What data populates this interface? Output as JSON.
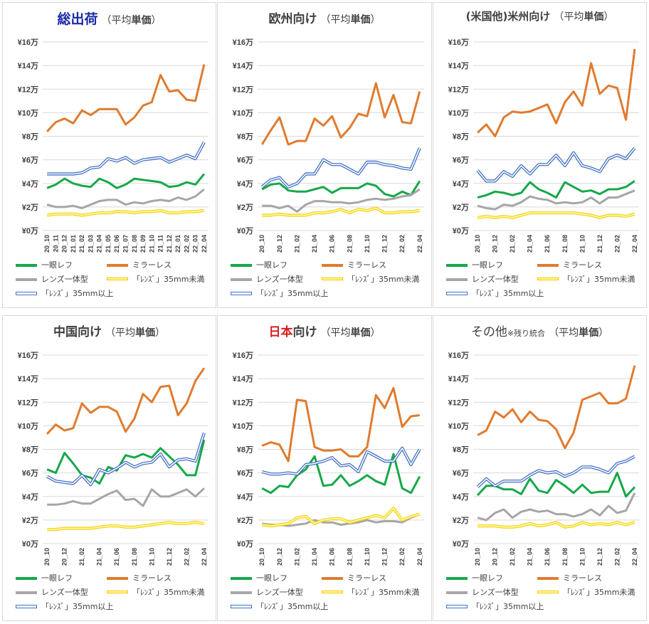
{
  "colors": {
    "一眼レフ": "#16a84a",
    "ミラーレス": "#e07b2f",
    "レンズ一体型": "#a6a6a6",
    "lens_small": "#f6d027",
    "lens_large": "#4472c4",
    "title_blue": "#1b2ca8",
    "title_red": "#d91e1e"
  },
  "legend": [
    "一眼レフ",
    "ミラーレス",
    "レンズ一体型",
    "「ﾚﾝｽﾞ」35mm未満",
    "「ﾚﾝｽﾞ」35mm以上"
  ],
  "panels": [
    {
      "title_main": "総出荷",
      "title_sub": "（平均",
      "title_bold": "単価",
      "title_close": "）",
      "title_color": "#1b2ca8"
    },
    {
      "title_main": "欧州向け",
      "title_sub": "（平均",
      "title_bold": "単価",
      "title_close": "）",
      "title_color": "#404040"
    },
    {
      "title_main": "(米国他)米州向け",
      "title_sub": "（平均",
      "title_bold": "単価",
      "title_close": "）",
      "title_color": "#404040"
    },
    {
      "title_main": "中国向け",
      "title_sub": "（平均",
      "title_bold": "単価",
      "title_close": "）",
      "title_color": "#404040"
    },
    {
      "title_main": "日本",
      "title_suffix": "向け",
      "title_sub": "（平均",
      "title_bold": "単価",
      "title_close": "）",
      "title_color": "#d91e1e"
    },
    {
      "title_main": "その他",
      "title_note": "※残り統合",
      "title_sub": "（平均",
      "title_bold": "単価",
      "title_close": "）",
      "title_color": "#404040"
    }
  ],
  "chart_data": [
    {
      "type": "line",
      "title": "総出荷（平均単価）",
      "x": [
        "20_10",
        "20_11",
        "20_12",
        "21_01",
        "21_02",
        "21_03",
        "21_04",
        "21_05",
        "21_06",
        "21_07",
        "21_08",
        "21_09",
        "21_10",
        "21_11",
        "21_12",
        "22_01",
        "22_02",
        "22_03",
        "22_04"
      ],
      "x_tick_labels": [
        "20_10",
        "20_11",
        "20_12",
        "21_01",
        "21_02",
        "21_03",
        "21_04",
        "21_05",
        "21_06",
        "21_07",
        "21_08",
        "21_09",
        "21_10",
        "21_11",
        "21_12",
        "22_01",
        "22_02",
        "22_03",
        "22_04"
      ],
      "y_tick_labels": [
        "¥0万",
        "¥2万",
        "¥4万",
        "¥6万",
        "¥8万",
        "¥10万",
        "¥12万",
        "¥14万",
        "¥16万"
      ],
      "ylim": [
        0,
        16
      ],
      "series": [
        {
          "name": "一眼レフ",
          "values": [
            3.6,
            3.9,
            4.4,
            4.0,
            3.8,
            3.7,
            4.4,
            4.1,
            3.6,
            3.9,
            4.4,
            4.3,
            4.2,
            4.1,
            3.7,
            3.8,
            4.1,
            3.9,
            4.8
          ]
        },
        {
          "name": "ミラーレス",
          "values": [
            8.4,
            9.2,
            9.5,
            9.1,
            10.2,
            9.8,
            10.3,
            10.3,
            10.3,
            9.0,
            9.6,
            10.6,
            10.9,
            13.2,
            11.8,
            11.9,
            11.1,
            11.0,
            14.1
          ]
        },
        {
          "name": "レンズ一体型",
          "values": [
            2.2,
            2.0,
            2.0,
            2.1,
            1.9,
            2.2,
            2.5,
            2.6,
            2.6,
            2.2,
            2.4,
            2.3,
            2.5,
            2.6,
            2.5,
            2.8,
            2.6,
            2.9,
            3.5
          ]
        },
        {
          "name": "「ﾚﾝｽﾞ」35mm未満",
          "values": [
            1.3,
            1.4,
            1.4,
            1.4,
            1.3,
            1.4,
            1.5,
            1.5,
            1.6,
            1.6,
            1.5,
            1.6,
            1.6,
            1.7,
            1.5,
            1.5,
            1.6,
            1.6,
            1.7
          ]
        },
        {
          "name": "「ﾚﾝｽﾞ」35mm以上",
          "values": [
            4.8,
            4.8,
            4.8,
            4.8,
            4.9,
            5.3,
            5.4,
            6.1,
            5.9,
            6.2,
            5.7,
            6.0,
            6.1,
            6.2,
            5.8,
            6.1,
            6.4,
            6.1,
            7.5
          ]
        }
      ]
    },
    {
      "type": "line",
      "title": "欧州向け（平均単価）",
      "x": [
        "20_10",
        "20_11",
        "20_12",
        "21_01",
        "21_02",
        "21_03",
        "21_04",
        "21_05",
        "21_06",
        "21_07",
        "21_08",
        "21_09",
        "21_10",
        "21_11",
        "21_12",
        "22_01",
        "22_02",
        "22_03",
        "22_04"
      ],
      "x_tick_labels": [
        "20_10",
        "20_12",
        "21_02",
        "21_04",
        "21_06",
        "21_08",
        "21_10",
        "21_12",
        "22_02",
        "22_04"
      ],
      "y_tick_labels": [
        "¥0万",
        "¥2万",
        "¥4万",
        "¥6万",
        "¥8万",
        "¥10万",
        "¥12万",
        "¥14万",
        "¥16万"
      ],
      "ylim": [
        0,
        16
      ],
      "series": [
        {
          "name": "一眼レフ",
          "values": [
            3.5,
            3.9,
            4.0,
            3.4,
            3.3,
            3.3,
            3.5,
            3.7,
            3.2,
            3.6,
            3.6,
            3.6,
            4.0,
            3.8,
            3.1,
            2.9,
            3.3,
            3.0,
            4.2
          ]
        },
        {
          "name": "ミラーレス",
          "values": [
            7.3,
            8.5,
            9.6,
            7.3,
            7.6,
            7.6,
            9.5,
            8.9,
            9.7,
            7.9,
            8.7,
            9.9,
            9.7,
            12.5,
            9.6,
            11.5,
            9.2,
            9.1,
            11.8
          ]
        },
        {
          "name": "レンズ一体型",
          "values": [
            2.1,
            2.1,
            1.9,
            2.1,
            1.6,
            2.2,
            2.5,
            2.5,
            2.4,
            2.4,
            2.3,
            2.4,
            2.6,
            2.7,
            2.6,
            2.7,
            2.9,
            3.0,
            3.5
          ]
        },
        {
          "name": "「ﾚﾝｽﾞ」35mm未満",
          "values": [
            1.3,
            1.3,
            1.4,
            1.3,
            1.3,
            1.3,
            1.5,
            1.5,
            1.6,
            1.8,
            1.5,
            1.8,
            1.7,
            1.9,
            1.5,
            1.5,
            1.6,
            1.6,
            1.7
          ]
        },
        {
          "name": "「ﾚﾝｽﾞ」35mm以上",
          "values": [
            3.7,
            4.3,
            4.5,
            3.7,
            4.0,
            4.8,
            4.8,
            6.0,
            5.6,
            5.6,
            5.2,
            4.8,
            5.8,
            5.8,
            5.6,
            5.5,
            5.3,
            5.2,
            7.0
          ]
        }
      ]
    },
    {
      "type": "line",
      "title": "(米国他)米州向け（平均単価）",
      "x": [
        "20_10",
        "20_11",
        "20_12",
        "21_01",
        "21_02",
        "21_03",
        "21_04",
        "21_05",
        "21_06",
        "21_07",
        "21_08",
        "21_09",
        "21_10",
        "21_11",
        "21_12",
        "22_01",
        "22_02",
        "22_03",
        "22_04"
      ],
      "x_tick_labels": [
        "20_10",
        "20_12",
        "21_02",
        "21_04",
        "21_06",
        "21_08",
        "21_10",
        "21_12",
        "22_02",
        "22_04"
      ],
      "y_tick_labels": [
        "¥0万",
        "¥2万",
        "¥4万",
        "¥6万",
        "¥8万",
        "¥10万",
        "¥12万",
        "¥14万",
        "¥16万"
      ],
      "ylim": [
        0,
        16
      ],
      "series": [
        {
          "name": "一眼レフ",
          "values": [
            2.8,
            3.0,
            3.3,
            3.2,
            3.0,
            3.2,
            4.1,
            3.5,
            3.2,
            2.8,
            4.1,
            3.7,
            3.3,
            3.4,
            3.1,
            3.5,
            3.5,
            3.7,
            4.2
          ]
        },
        {
          "name": "ミラーレス",
          "values": [
            8.3,
            9.0,
            8.0,
            9.6,
            10.1,
            10.0,
            10.1,
            10.4,
            10.7,
            9.1,
            10.9,
            11.8,
            10.6,
            14.2,
            11.6,
            12.3,
            12.1,
            9.4,
            15.4
          ]
        },
        {
          "name": "レンズ一体型",
          "values": [
            2.1,
            1.9,
            1.8,
            2.2,
            2.1,
            2.4,
            2.9,
            2.7,
            2.6,
            2.3,
            2.4,
            2.3,
            2.4,
            2.8,
            2.3,
            2.8,
            2.8,
            3.1,
            3.4
          ]
        },
        {
          "name": "「ﾚﾝｽﾞ」35mm未満",
          "values": [
            1.1,
            1.2,
            1.1,
            1.2,
            1.1,
            1.3,
            1.5,
            1.5,
            1.5,
            1.5,
            1.5,
            1.5,
            1.4,
            1.3,
            1.1,
            1.3,
            1.3,
            1.2,
            1.4
          ]
        },
        {
          "name": "「ﾚﾝｽﾞ」35mm以上",
          "values": [
            5.1,
            4.2,
            4.2,
            5.0,
            4.6,
            5.5,
            4.8,
            5.6,
            5.6,
            6.4,
            5.5,
            6.6,
            5.5,
            5.3,
            5.0,
            6.1,
            6.4,
            6.1,
            7.0
          ]
        }
      ]
    },
    {
      "type": "line",
      "title": "中国向け（平均単価）",
      "x": [
        "20_10",
        "20_11",
        "20_12",
        "21_01",
        "21_02",
        "21_03",
        "21_04",
        "21_05",
        "21_06",
        "21_07",
        "21_08",
        "21_09",
        "21_10",
        "21_11",
        "21_12",
        "22_01",
        "22_02",
        "22_03",
        "22_04"
      ],
      "x_tick_labels": [
        "20_10",
        "20_12",
        "21_02",
        "21_04",
        "21_06",
        "21_08",
        "21_10",
        "21_12",
        "22_02",
        "22_04"
      ],
      "y_tick_labels": [
        "¥0万",
        "¥2万",
        "¥4万",
        "¥6万",
        "¥8万",
        "¥10万",
        "¥12万",
        "¥14万",
        "¥16万"
      ],
      "ylim": [
        0,
        16
      ],
      "series": [
        {
          "name": "一眼レフ",
          "values": [
            6.3,
            6.0,
            7.7,
            6.8,
            5.8,
            5.6,
            5.1,
            6.5,
            6.2,
            7.5,
            7.3,
            7.6,
            7.3,
            8.1,
            7.4,
            6.7,
            5.8,
            5.8,
            8.8
          ]
        },
        {
          "name": "ミラーレス",
          "values": [
            9.3,
            10.1,
            9.6,
            9.8,
            11.9,
            11.1,
            11.6,
            11.6,
            11.2,
            9.5,
            10.6,
            12.7,
            12.0,
            13.3,
            13.4,
            10.9,
            11.9,
            13.8,
            14.9
          ]
        },
        {
          "name": "レンズ一体型",
          "values": [
            3.3,
            3.3,
            3.4,
            3.6,
            3.4,
            3.4,
            3.8,
            4.2,
            4.5,
            3.7,
            3.8,
            3.2,
            4.6,
            4.0,
            4.0,
            4.3,
            4.6,
            4.0,
            4.7
          ]
        },
        {
          "name": "「ﾚﾝｽﾞ」35mm未満",
          "values": [
            1.2,
            1.2,
            1.3,
            1.3,
            1.3,
            1.3,
            1.4,
            1.5,
            1.5,
            1.4,
            1.4,
            1.5,
            1.6,
            1.7,
            1.8,
            1.7,
            1.7,
            1.8,
            1.7
          ]
        },
        {
          "name": "「ﾚﾝｽﾞ」35mm以上",
          "values": [
            5.7,
            5.3,
            5.2,
            5.1,
            5.8,
            5.0,
            6.3,
            6.0,
            6.4,
            6.9,
            6.5,
            6.8,
            6.9,
            7.6,
            6.5,
            7.1,
            7.2,
            7.0,
            9.4
          ]
        }
      ]
    },
    {
      "type": "line",
      "title": "日本向け（平均単価）",
      "x": [
        "20_10",
        "20_11",
        "20_12",
        "21_01",
        "21_02",
        "21_03",
        "21_04",
        "21_05",
        "21_06",
        "21_07",
        "21_08",
        "21_09",
        "21_10",
        "21_11",
        "21_12",
        "22_01",
        "22_02",
        "22_03",
        "22_04"
      ],
      "x_tick_labels": [
        "20_10",
        "20_12",
        "21_02",
        "21_04",
        "21_06",
        "21_08",
        "21_10",
        "21_12",
        "22_02",
        "22_04"
      ],
      "y_tick_labels": [
        "¥0万",
        "¥2万",
        "¥4万",
        "¥6万",
        "¥8万",
        "¥10万",
        "¥12万",
        "¥14万",
        "¥16万"
      ],
      "ylim": [
        0,
        16
      ],
      "series": [
        {
          "name": "一眼レフ",
          "values": [
            4.7,
            4.3,
            4.9,
            4.8,
            5.8,
            6.3,
            7.4,
            4.9,
            5.0,
            5.8,
            4.9,
            5.3,
            5.8,
            5.3,
            5.0,
            7.6,
            4.7,
            4.3,
            5.7
          ]
        },
        {
          "name": "ミラーレス",
          "values": [
            8.3,
            8.6,
            8.4,
            7.0,
            12.2,
            12.1,
            8.2,
            7.9,
            7.9,
            8.0,
            7.4,
            7.4,
            8.2,
            12.6,
            11.5,
            13.2,
            9.9,
            10.8,
            10.9
          ]
        },
        {
          "name": "レンズ一体型",
          "values": [
            1.7,
            1.6,
            1.6,
            1.5,
            1.6,
            1.7,
            2.0,
            1.8,
            1.8,
            1.6,
            1.7,
            1.8,
            2.0,
            1.8,
            1.9,
            1.9,
            1.8,
            2.2,
            2.5
          ]
        },
        {
          "name": "「ﾚﾝｽﾞ」35mm未満",
          "values": [
            1.6,
            1.5,
            1.6,
            1.7,
            2.2,
            2.3,
            1.7,
            2.0,
            2.1,
            2.1,
            1.8,
            2.0,
            2.2,
            2.4,
            2.2,
            3.0,
            2.0,
            2.3,
            2.5
          ]
        },
        {
          "name": "「ﾚﾝｽﾞ」35mm以上",
          "values": [
            6.1,
            5.9,
            5.9,
            6.0,
            5.9,
            6.7,
            6.8,
            7.0,
            7.3,
            6.6,
            6.7,
            6.1,
            7.8,
            7.4,
            7.0,
            7.0,
            8.1,
            6.7,
            8.0
          ]
        }
      ]
    },
    {
      "type": "line",
      "title": "その他※残り統合（平均単価）",
      "x": [
        "20_10",
        "20_11",
        "20_12",
        "21_01",
        "21_02",
        "21_03",
        "21_04",
        "21_05",
        "21_06",
        "21_07",
        "21_08",
        "21_09",
        "21_10",
        "21_11",
        "21_12",
        "22_01",
        "22_02",
        "22_03",
        "22_04"
      ],
      "x_tick_labels": [
        "20_10",
        "20_12",
        "21_02",
        "21_04",
        "21_06",
        "21_08",
        "21_10",
        "21_12",
        "22_02",
        "22_04"
      ],
      "y_tick_labels": [
        "¥0万",
        "¥2万",
        "¥4万",
        "¥6万",
        "¥8万",
        "¥10万",
        "¥12万",
        "¥14万",
        "¥16万"
      ],
      "ylim": [
        0,
        16
      ],
      "series": [
        {
          "name": "一眼レフ",
          "values": [
            4.1,
            4.9,
            4.9,
            4.6,
            4.6,
            4.2,
            5.5,
            4.5,
            4.3,
            5.4,
            4.9,
            4.3,
            5.0,
            4.3,
            4.4,
            4.4,
            6.0,
            4.0,
            4.8
          ]
        },
        {
          "name": "ミラーレス",
          "values": [
            9.2,
            9.6,
            11.2,
            10.7,
            11.4,
            10.3,
            11.2,
            10.5,
            10.4,
            9.7,
            8.1,
            9.4,
            12.2,
            12.5,
            12.8,
            11.9,
            11.9,
            12.3,
            15.1
          ]
        },
        {
          "name": "レンズ一体型",
          "values": [
            2.2,
            2.0,
            2.6,
            2.9,
            2.2,
            2.7,
            2.9,
            2.7,
            2.8,
            2.5,
            2.5,
            2.3,
            2.5,
            2.9,
            2.4,
            3.2,
            2.6,
            2.8,
            4.3
          ]
        },
        {
          "name": "「ﾚﾝｽﾞ」35mm未満",
          "values": [
            1.5,
            1.5,
            1.5,
            1.4,
            1.4,
            1.5,
            1.7,
            1.5,
            1.6,
            1.8,
            1.4,
            1.5,
            1.8,
            1.6,
            1.7,
            1.6,
            1.8,
            1.6,
            1.8
          ]
        },
        {
          "name": "「ﾚﾝｽﾞ」35mm以上",
          "values": [
            4.8,
            5.5,
            4.9,
            5.3,
            5.3,
            5.3,
            5.8,
            6.2,
            6.0,
            6.1,
            5.7,
            6.0,
            6.5,
            6.5,
            6.3,
            6.0,
            6.8,
            7.0,
            7.4
          ]
        }
      ]
    }
  ]
}
